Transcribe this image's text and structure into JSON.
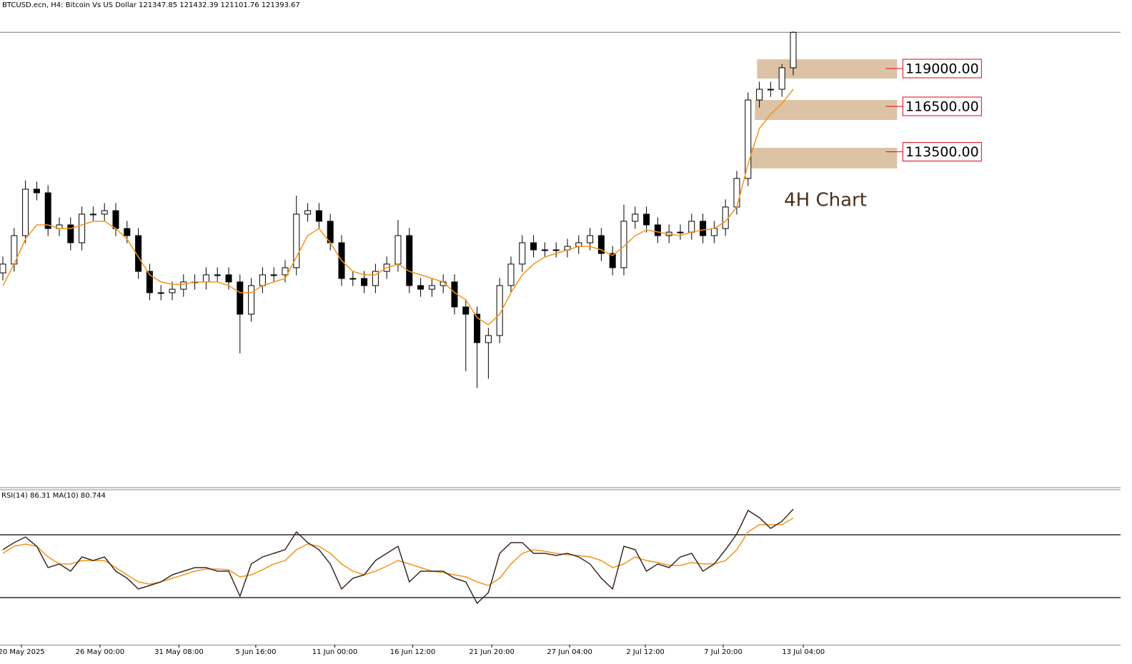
{
  "chart_data": [
    {
      "type": "candlestick",
      "title": "BTCUSD.ecn, H4:  Bitcoin Vs US Dollar  121347.85 121432.39 121101.76 121393.67",
      "annotation": "4H Chart",
      "categories": [
        null,
        null,
        null,
        null,
        null,
        null,
        null,
        null,
        null,
        null,
        null,
        null,
        null,
        null,
        null,
        null,
        null,
        null,
        null,
        null,
        null,
        null,
        null,
        null,
        null,
        null,
        null,
        null,
        null,
        null,
        null,
        null,
        null,
        null,
        null,
        null,
        null,
        null,
        null,
        null,
        null,
        null,
        null,
        null,
        null,
        null,
        null,
        null,
        null,
        null,
        null,
        null,
        null,
        null,
        null,
        null,
        null,
        null,
        null,
        null,
        null,
        null,
        null,
        null,
        null,
        null,
        null,
        null,
        null,
        null,
        null
      ],
      "open": [
        105500,
        106080,
        107960,
        111030,
        110790,
        108430,
        108670,
        107490,
        109380,
        109380,
        109610,
        108430,
        107960,
        105600,
        104190,
        104190,
        104420,
        104900,
        104900,
        105370,
        105370,
        104900,
        102770,
        104660,
        105370,
        105370,
        105840,
        109380,
        109610,
        108910,
        107490,
        105130,
        105130,
        104660,
        105600,
        106080,
        107960,
        104660,
        104420,
        104660,
        104900,
        103250,
        102770,
        100890,
        101360,
        104660,
        106080,
        107490,
        107020,
        107020,
        107020,
        107250,
        107490,
        107960,
        106780,
        105840,
        108910,
        109380,
        108670,
        107960,
        108190,
        108190,
        108910,
        107960,
        108430,
        109850,
        111740,
        116920,
        117630,
        117630,
        119050
      ],
      "high": [
        106580,
        108460,
        111600,
        111530,
        111290,
        109170,
        109170,
        109880,
        109880,
        110110,
        110110,
        108930,
        108460,
        106100,
        104690,
        104920,
        105400,
        105400,
        105870,
        105870,
        105870,
        105400,
        105160,
        105870,
        105870,
        106340,
        110600,
        110110,
        110110,
        109410,
        107990,
        105630,
        105630,
        106100,
        106580,
        109000,
        108460,
        105160,
        105160,
        105400,
        105400,
        103750,
        103270,
        101860,
        105160,
        106580,
        107990,
        107990,
        107520,
        107520,
        107750,
        107990,
        108460,
        108460,
        107280,
        110000,
        109880,
        109880,
        109170,
        108690,
        108690,
        109410,
        109410,
        108930,
        110350,
        112240,
        117420,
        118130,
        118130,
        119300,
        121450
      ],
      "low": [
        105000,
        105580,
        107460,
        110290,
        107930,
        107930,
        106990,
        106990,
        108880,
        108880,
        107930,
        107460,
        105100,
        103690,
        103690,
        103690,
        103920,
        104400,
        104400,
        104870,
        104400,
        100180,
        102270,
        104160,
        104870,
        104870,
        105340,
        108880,
        108410,
        106990,
        104630,
        104630,
        104160,
        104160,
        105100,
        105580,
        104160,
        103920,
        103920,
        104160,
        102750,
        99000,
        97900,
        98500,
        100860,
        104160,
        105580,
        106520,
        106520,
        106520,
        106520,
        106750,
        106990,
        106280,
        105340,
        105340,
        108410,
        108170,
        107460,
        107460,
        107690,
        107690,
        107460,
        107460,
        107930,
        109350,
        111240,
        116420,
        117130,
        117130,
        118550
      ],
      "close": [
        106080,
        107960,
        111030,
        110790,
        108430,
        108670,
        107490,
        109380,
        109380,
        109610,
        108430,
        107960,
        105600,
        104190,
        104190,
        104420,
        104900,
        104900,
        105370,
        105370,
        104900,
        102770,
        104660,
        105370,
        105370,
        105840,
        109380,
        109610,
        108910,
        107490,
        105130,
        105130,
        104660,
        105600,
        106080,
        107960,
        104660,
        104420,
        104660,
        104900,
        103250,
        102770,
        100890,
        101360,
        104660,
        106080,
        107490,
        107020,
        107020,
        107020,
        107250,
        107490,
        107960,
        106780,
        105840,
        108910,
        109380,
        108670,
        107960,
        108190,
        108190,
        108910,
        107960,
        108430,
        109850,
        111740,
        116920,
        117630,
        117630,
        119050,
        121390
      ],
      "ma": [
        104660,
        106080,
        107730,
        108670,
        108670,
        108430,
        108430,
        108670,
        108910,
        108910,
        108430,
        107730,
        106550,
        105370,
        104900,
        104750,
        104750,
        104900,
        104900,
        104900,
        104660,
        104190,
        104190,
        104660,
        104900,
        105130,
        106550,
        107960,
        108430,
        107490,
        106310,
        105600,
        105370,
        105370,
        105840,
        106080,
        105600,
        105370,
        105130,
        104900,
        104190,
        103720,
        102540,
        102070,
        102770,
        104190,
        105370,
        106080,
        106550,
        106780,
        107020,
        107250,
        107250,
        107020,
        106640,
        107250,
        107960,
        108340,
        108200,
        108060,
        107960,
        108200,
        108340,
        108430,
        108910,
        109850,
        112680,
        115040,
        115980,
        116690,
        117630
      ],
      "ma_color": "#f7931a",
      "last_price": 121393.67,
      "levels": [
        {
          "value": 119000,
          "label": "119000.00"
        },
        {
          "value": 116500,
          "label": "116500.00"
        },
        {
          "value": 113500,
          "label": "113500.00"
        }
      ],
      "level_color": "#e0001b",
      "zones": [
        {
          "high": 119610,
          "low": 118340,
          "start": 66.8,
          "end": 79.2
        },
        {
          "high": 116920,
          "low": 115600,
          "start": 66.6,
          "end": 79.2
        },
        {
          "high": 113760,
          "low": 112400,
          "start": 66.1,
          "end": 79.2
        }
      ],
      "zone_color": "#dcc3a5",
      "xlim": [
        -0.253,
        98.99
      ],
      "ylim": [
        91310,
        122820
      ]
    },
    {
      "type": "line",
      "title": "RSI(14) 86.31 MA(10) 80.744",
      "categories": [
        null,
        null,
        null,
        null,
        null,
        null,
        null,
        null,
        null,
        null,
        null,
        null,
        null,
        null,
        null,
        null,
        null,
        null,
        null,
        null,
        null,
        null,
        null,
        null,
        null,
        null,
        null,
        null,
        null,
        null,
        null,
        null,
        null,
        null,
        null,
        null,
        null,
        null,
        null,
        null,
        null,
        null,
        null,
        null,
        null,
        null,
        null,
        null,
        null,
        null,
        null,
        null,
        null,
        null,
        null,
        null,
        null,
        null,
        null,
        null,
        null,
        null,
        null,
        null,
        null,
        null,
        null,
        null,
        null,
        null,
        null
      ],
      "series": [
        {
          "name": "RSI(14)",
          "color": "#3b2a20",
          "values": [
            60.5,
            65.0,
            68.6,
            62.7,
            49.1,
            51.4,
            46.8,
            55.9,
            53.6,
            55.9,
            46.8,
            42.3,
            35.5,
            37.7,
            40.0,
            44.5,
            46.8,
            49.1,
            49.1,
            46.8,
            46.8,
            30.9,
            51.4,
            55.9,
            58.2,
            60.5,
            71.8,
            65.0,
            60.5,
            51.4,
            35.5,
            42.3,
            44.5,
            53.6,
            58.2,
            62.7,
            40.0,
            46.8,
            46.8,
            46.8,
            42.3,
            40.0,
            26.4,
            33.2,
            58.2,
            65.0,
            65.0,
            58.2,
            58.2,
            56.8,
            58.2,
            55.9,
            51.4,
            42.3,
            35.5,
            62.7,
            60.5,
            46.8,
            51.4,
            49.1,
            55.9,
            58.2,
            46.8,
            51.4,
            60.5,
            70.5,
            85.5,
            80.9,
            74.1,
            78.6,
            86.3
          ]
        },
        {
          "name": "MA(10)",
          "color": "#f7931a",
          "values": [
            58.2,
            62.7,
            64.1,
            62.7,
            55.9,
            51.4,
            51.4,
            53.6,
            53.6,
            53.6,
            49.1,
            44.5,
            40.0,
            38.6,
            40.0,
            42.3,
            44.5,
            46.8,
            48.2,
            48.2,
            47.7,
            43.2,
            44.5,
            47.7,
            51.4,
            53.6,
            60.5,
            64.1,
            62.7,
            58.2,
            51.4,
            46.8,
            44.5,
            46.8,
            50.0,
            53.6,
            51.4,
            49.1,
            46.8,
            45.9,
            44.5,
            43.2,
            40.0,
            37.7,
            42.3,
            51.4,
            58.2,
            60.5,
            59.5,
            58.2,
            57.3,
            56.8,
            55.9,
            53.6,
            49.1,
            51.4,
            55.9,
            53.6,
            52.3,
            50.5,
            50.5,
            52.3,
            51.4,
            51.4,
            53.6,
            60.5,
            71.8,
            76.4,
            76.4,
            76.4,
            80.7
          ]
        }
      ],
      "levels": [
        70,
        30
      ],
      "xlim": [
        -0.253,
        98.99
      ],
      "ylim": [
        0,
        100
      ],
      "xticks": [
        {
          "value": 1.65,
          "label": "20 May 2025"
        },
        {
          "value": 8.6,
          "label": "26 May 00:00"
        },
        {
          "value": 15.6,
          "label": "31 May 08:00"
        },
        {
          "value": 22.4,
          "label": "5 Jun 16:00"
        },
        {
          "value": 29.4,
          "label": "11 Jun 00:00"
        },
        {
          "value": 36.3,
          "label": "16 Jun 12:00"
        },
        {
          "value": 43.3,
          "label": "21 Jun 20:00"
        },
        {
          "value": 50.2,
          "label": "27 Jun 04:00"
        },
        {
          "value": 56.9,
          "label": "2 Jul 12:00"
        },
        {
          "value": 63.8,
          "label": "7 Jul 20:00"
        },
        {
          "value": 70.9,
          "label": "13 Jul 04:00"
        }
      ]
    }
  ]
}
